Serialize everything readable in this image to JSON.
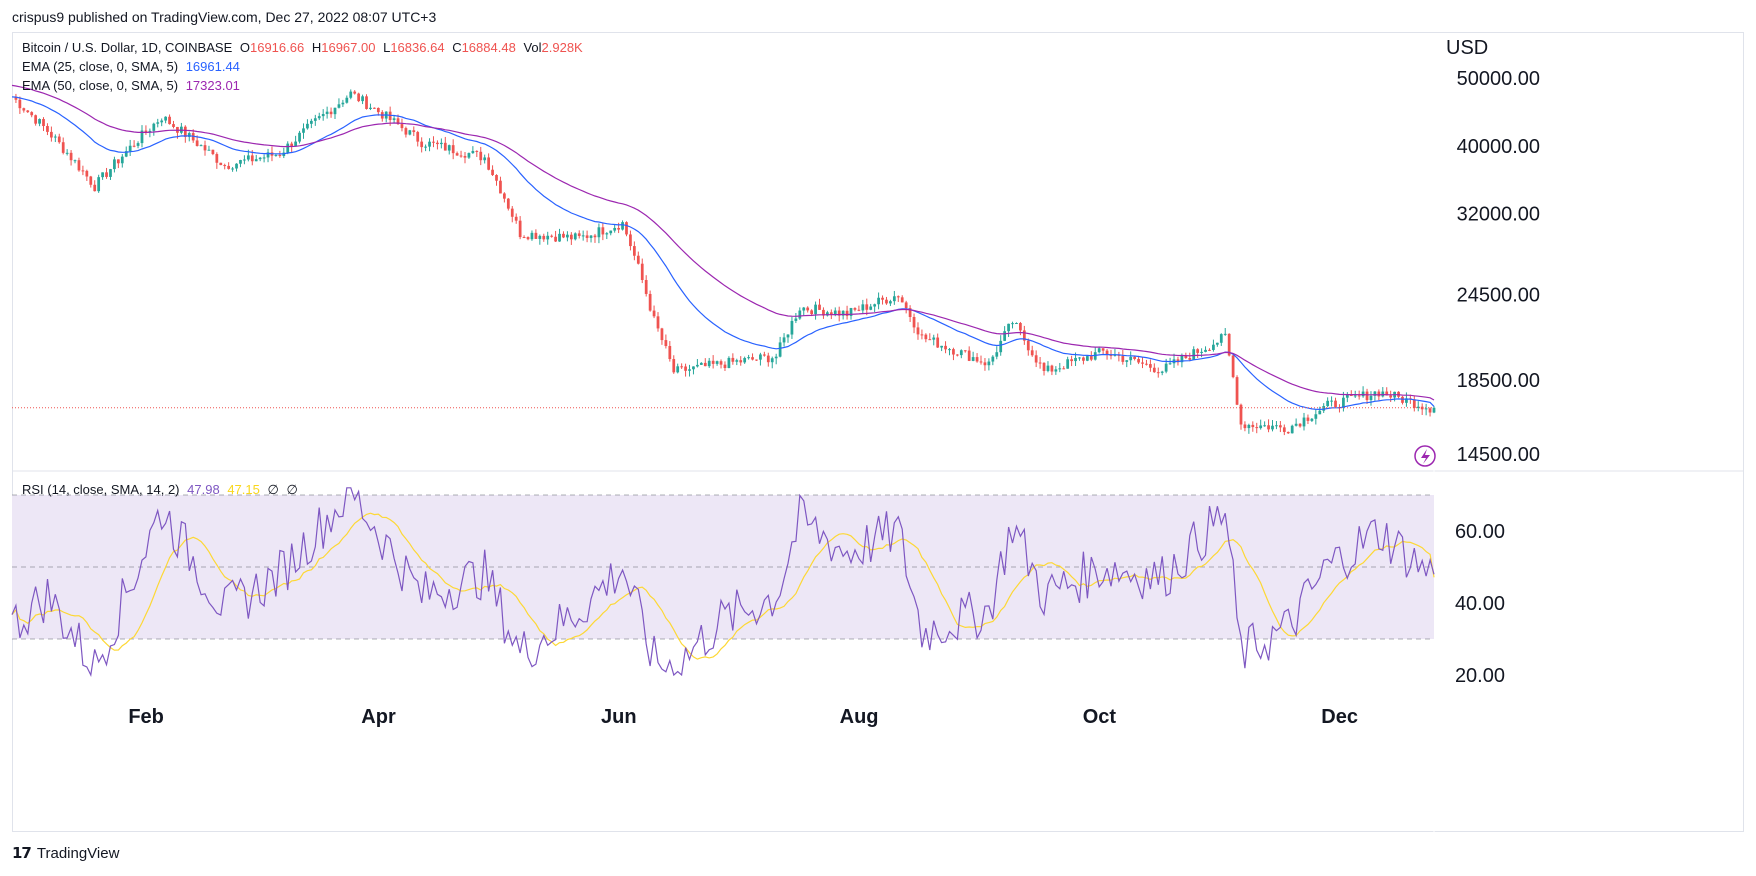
{
  "caption": "crispus9 published on TradingView.com, Dec 27, 2022 08:07 UTC+3",
  "footer": {
    "brand": "TradingView",
    "logo_icon": "tradingview-logo-icon"
  },
  "header": {
    "symbol": "Bitcoin / U.S. Dollar, 1D, COINBASE",
    "o_label": "O",
    "o_value": "16916.66",
    "h_label": "H",
    "h_value": "16967.00",
    "l_label": "L",
    "l_value": "16836.64",
    "c_label": "C",
    "c_value": "16884.48",
    "vol_label": "Vol",
    "vol_value": "2.928K"
  },
  "indicators": {
    "ema25": {
      "label": "EMA (25, close, 0, SMA, 5)",
      "value": "16961.44"
    },
    "ema50": {
      "label": "EMA (50, close, 0, SMA, 5)",
      "value": "17323.01"
    },
    "rsi": {
      "label": "RSI (14, close, SMA, 14, 2)",
      "value": "47.98",
      "ma_value": "47.15",
      "extra1": "∅",
      "extra2": "∅"
    }
  },
  "colors": {
    "up": "#26a69a",
    "down": "#ef5350",
    "ema25": "#2962ff",
    "ema50": "#9c27b0",
    "rsi": "#7e57c2",
    "rsi_ma": "#fdd835",
    "rsi_band": "#ede7f6",
    "price_line": "#ef5350"
  },
  "chart_data": [
    {
      "type": "candlestick",
      "title": "Bitcoin / U.S. Dollar, 1D, COINBASE",
      "y_unit": "USD",
      "y_scale": "log",
      "y_ticks": [
        "50000.00",
        "40000.00",
        "32000.00",
        "24500.00",
        "18500.00",
        "14500.00"
      ],
      "x_ticks": [
        "Feb",
        "Apr",
        "Jun",
        "Aug",
        "Oct",
        "Dec"
      ],
      "last_close": 16884.48,
      "approx_path": [
        {
          "date": "Jan 01",
          "close": 47000
        },
        {
          "date": "Jan 10",
          "close": 42000
        },
        {
          "date": "Jan 22",
          "close": 35000
        },
        {
          "date": "Feb 08",
          "close": 44000
        },
        {
          "date": "Feb 24",
          "close": 37500
        },
        {
          "date": "Mar 10",
          "close": 39000
        },
        {
          "date": "Mar 28",
          "close": 47500
        },
        {
          "date": "Apr 15",
          "close": 40500
        },
        {
          "date": "May 01",
          "close": 38500
        },
        {
          "date": "May 10",
          "close": 30000
        },
        {
          "date": "May 25",
          "close": 29500
        },
        {
          "date": "Jun 05",
          "close": 31000
        },
        {
          "date": "Jun 13",
          "close": 22500
        },
        {
          "date": "Jun 18",
          "close": 19000
        },
        {
          "date": "Jun 30",
          "close": 19500
        },
        {
          "date": "Jul 14",
          "close": 20000
        },
        {
          "date": "Jul 20",
          "close": 23500
        },
        {
          "date": "Aug 01",
          "close": 23000
        },
        {
          "date": "Aug 14",
          "close": 24500
        },
        {
          "date": "Aug 20",
          "close": 21300
        },
        {
          "date": "Sep 06",
          "close": 19500
        },
        {
          "date": "Sep 12",
          "close": 22400
        },
        {
          "date": "Sep 20",
          "close": 19000
        },
        {
          "date": "Oct 05",
          "close": 20300
        },
        {
          "date": "Oct 20",
          "close": 19100
        },
        {
          "date": "Nov 05",
          "close": 21300
        },
        {
          "date": "Nov 09",
          "close": 16000
        },
        {
          "date": "Nov 21",
          "close": 15800
        },
        {
          "date": "Dec 01",
          "close": 17000
        },
        {
          "date": "Dec 14",
          "close": 17800
        },
        {
          "date": "Dec 27",
          "close": 16884
        }
      ],
      "ema25_last": 16961.44,
      "ema50_last": 17323.01
    },
    {
      "type": "line",
      "title": "RSI (14, close, SMA, 14, 2)",
      "y_ticks": [
        "60.00",
        "40.00",
        "20.00"
      ],
      "bands": [
        30,
        70
      ],
      "middle": 50,
      "rsi_last": 47.98,
      "rsi_ma_last": 47.15,
      "rsi_approx": [
        {
          "date": "Jan 01",
          "rsi": 34
        },
        {
          "date": "Jan 10",
          "rsi": 42
        },
        {
          "date": "Jan 22",
          "rsi": 22
        },
        {
          "date": "Feb 08",
          "rsi": 66
        },
        {
          "date": "Feb 24",
          "rsi": 38
        },
        {
          "date": "Mar 10",
          "rsi": 48
        },
        {
          "date": "Mar 28",
          "rsi": 71
        },
        {
          "date": "Apr 15",
          "rsi": 42
        },
        {
          "date": "May 01",
          "rsi": 48
        },
        {
          "date": "May 10",
          "rsi": 26
        },
        {
          "date": "May 25",
          "rsi": 38
        },
        {
          "date": "Jun 05",
          "rsi": 50
        },
        {
          "date": "Jun 13",
          "rsi": 24
        },
        {
          "date": "Jun 18",
          "rsi": 22
        },
        {
          "date": "Jun 30",
          "rsi": 35
        },
        {
          "date": "Jul 14",
          "rsi": 42
        },
        {
          "date": "Jul 20",
          "rsi": 63
        },
        {
          "date": "Aug 01",
          "rsi": 54
        },
        {
          "date": "Aug 14",
          "rsi": 60
        },
        {
          "date": "Aug 20",
          "rsi": 32
        },
        {
          "date": "Sep 06",
          "rsi": 38
        },
        {
          "date": "Sep 12",
          "rsi": 62
        },
        {
          "date": "Sep 20",
          "rsi": 42
        },
        {
          "date": "Oct 05",
          "rsi": 50
        },
        {
          "date": "Oct 20",
          "rsi": 47
        },
        {
          "date": "Nov 05",
          "rsi": 65
        },
        {
          "date": "Nov 09",
          "rsi": 26
        },
        {
          "date": "Nov 21",
          "rsi": 33
        },
        {
          "date": "Dec 01",
          "rsi": 50
        },
        {
          "date": "Dec 14",
          "rsi": 60
        },
        {
          "date": "Dec 27",
          "rsi": 47.98
        }
      ]
    }
  ]
}
